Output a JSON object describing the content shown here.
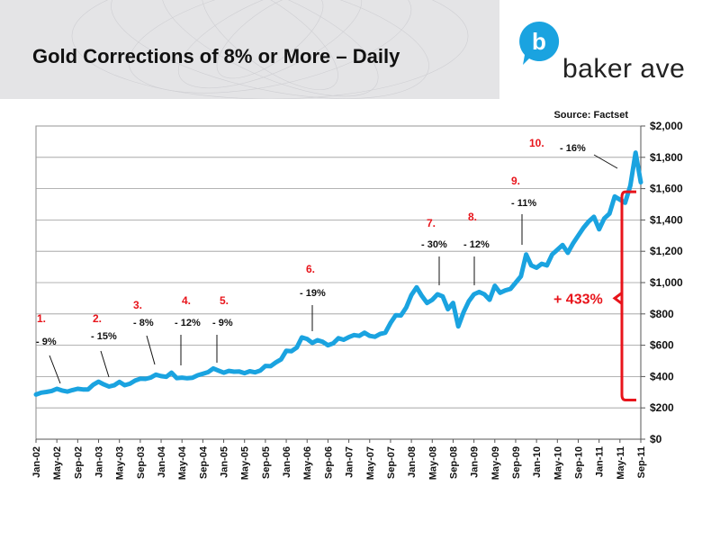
{
  "header": {
    "title": "Gold Corrections of 8% or More – Daily"
  },
  "logo": {
    "letter": "b",
    "text": "baker ave",
    "color": "#1aa3e0"
  },
  "chart_data": {
    "type": "line",
    "title": "Gold Corrections of 8% or More – Daily",
    "source": "Source: Factset",
    "ylim": [
      0,
      2000
    ],
    "yticks": [
      0,
      200,
      400,
      600,
      800,
      1000,
      1200,
      1400,
      1600,
      1800,
      2000
    ],
    "ytick_labels": [
      "$0",
      "$200",
      "$400",
      "$600",
      "$800",
      "$1,000",
      "$1,200",
      "$1,400",
      "$1,600",
      "$1,800",
      "$2,000"
    ],
    "xlim": [
      0,
      116
    ],
    "xtick_positions": [
      0,
      4,
      8,
      12,
      16,
      20,
      24,
      28,
      32,
      36,
      40,
      44,
      48,
      52,
      56,
      60,
      64,
      68,
      72,
      76,
      80,
      84,
      88,
      92,
      96,
      100,
      104,
      108,
      112,
      116
    ],
    "xtick_labels": [
      "Jan-02",
      "May-02",
      "Sep-02",
      "Jan-03",
      "May-03",
      "Sep-03",
      "Jan-04",
      "May-04",
      "Sep-04",
      "Jan-05",
      "May-05",
      "Sep-05",
      "Jan-06",
      "May-06",
      "Sep-06",
      "Jan-07",
      "May-07",
      "Sep-07",
      "Jan-08",
      "May-08",
      "Sep-08",
      "Jan-09",
      "May-09",
      "Sep-09",
      "Jan-10",
      "May-10",
      "Sep-10",
      "Jan-11",
      "May-11",
      "Sep-11"
    ],
    "series": [
      {
        "name": "Gold Price",
        "color": "#1aa3e0",
        "x": [
          0,
          1,
          2,
          3,
          4,
          5,
          6,
          7,
          8,
          9,
          10,
          11,
          12,
          13,
          14,
          15,
          16,
          17,
          18,
          19,
          20,
          21,
          22,
          23,
          24,
          25,
          26,
          27,
          28,
          29,
          30,
          31,
          32,
          33,
          34,
          35,
          36,
          37,
          38,
          39,
          40,
          41,
          42,
          43,
          44,
          45,
          46,
          47,
          48,
          49,
          50,
          51,
          52,
          53,
          54,
          55,
          56,
          57,
          58,
          59,
          60,
          61,
          62,
          63,
          64,
          65,
          66,
          67,
          68,
          69,
          70,
          71,
          72,
          73,
          74,
          75,
          76,
          77,
          78,
          79,
          80,
          81,
          82,
          83,
          84,
          85,
          86,
          87,
          88,
          89,
          90,
          91,
          92,
          93,
          94,
          95,
          96,
          97,
          98,
          99,
          100,
          101,
          102,
          103,
          104,
          105,
          106,
          107,
          108,
          109,
          110,
          111,
          112,
          113,
          114,
          115,
          116
        ],
        "y": [
          285,
          297,
          302,
          308,
          322,
          311,
          304,
          314,
          322,
          318,
          318,
          348,
          367,
          350,
          336,
          344,
          366,
          345,
          354,
          374,
          386,
          385,
          393,
          412,
          403,
          398,
          425,
          390,
          393,
          389,
          392,
          408,
          418,
          428,
          452,
          438,
          425,
          436,
          431,
          432,
          422,
          434,
          427,
          438,
          468,
          466,
          490,
          510,
          565,
          562,
          585,
          650,
          640,
          615,
          632,
          622,
          600,
          612,
          645,
          635,
          652,
          665,
          660,
          680,
          660,
          654,
          672,
          680,
          742,
          792,
          790,
          840,
          920,
          970,
          915,
          870,
          890,
          925,
          912,
          830,
          870,
          720,
          810,
          880,
          925,
          940,
          925,
          890,
          980,
          935,
          950,
          960,
          1000,
          1040,
          1180,
          1110,
          1095,
          1120,
          1110,
          1180,
          1210,
          1240,
          1190,
          1250,
          1300,
          1350,
          1390,
          1420,
          1340,
          1410,
          1440,
          1550,
          1530,
          1510,
          1620,
          1830,
          1640
        ]
      }
    ],
    "corrections": [
      {
        "number": "1.",
        "pct": "- 9%",
        "x": 4
      },
      {
        "number": "2.",
        "pct": "- 15%",
        "x": 14
      },
      {
        "number": "3.",
        "pct": "- 8%",
        "x": 23
      },
      {
        "number": "4.",
        "pct": "- 12%",
        "x": 27
      },
      {
        "number": "5.",
        "pct": "- 9%",
        "x": 34
      },
      {
        "number": "6.",
        "pct": "- 19%",
        "x": 53
      },
      {
        "number": "7.",
        "pct": "- 30%",
        "x": 78
      },
      {
        "number": "8.",
        "pct": "- 12%",
        "x": 84
      },
      {
        "number": "9.",
        "pct": "- 11%",
        "x": 94
      },
      {
        "number": "10.",
        "pct": "- 16%",
        "x": 113
      }
    ],
    "gain_label": "+ 433%",
    "gain_range": [
      250,
      1580
    ],
    "accent_red": "#e8141b"
  }
}
